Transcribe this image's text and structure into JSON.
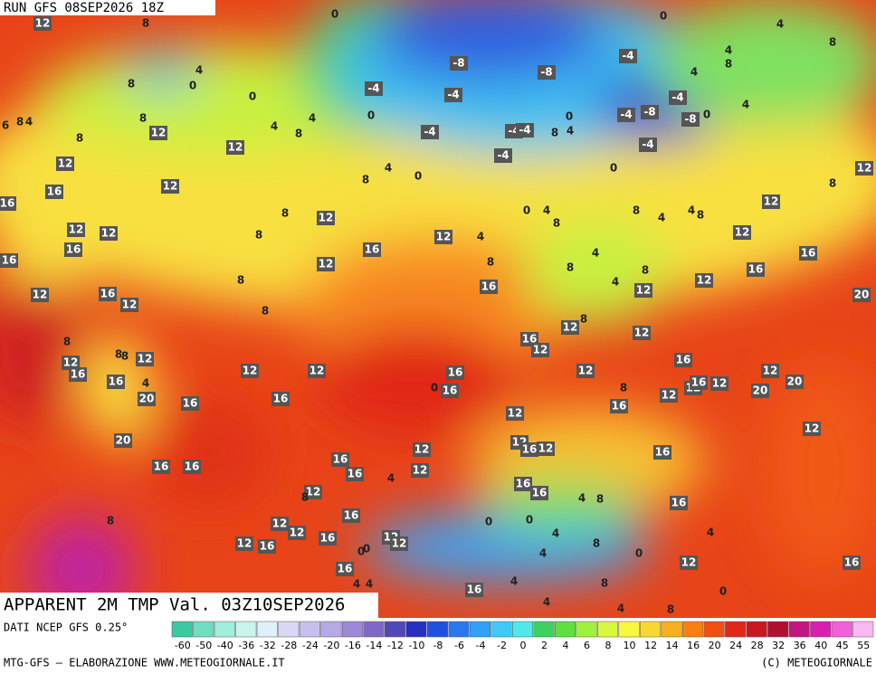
{
  "header": {
    "run": "RUN GFS 08SEP2026 18Z"
  },
  "title": "APPARENT 2M TMP Val. 03Z10SEP2026",
  "footer": {
    "source": "DATI NCEP GFS 0.25°",
    "credit": "MTG-GFS — ELABORAZIONE WWW.METEOGIORNALE.IT",
    "copyright": "(C) METEOGIORNALE"
  },
  "legend": {
    "ticks": [
      -60,
      -50,
      -40,
      -36,
      -32,
      -28,
      -24,
      -20,
      -16,
      -14,
      -12,
      -10,
      -8,
      -6,
      -4,
      -2,
      0,
      2,
      4,
      6,
      8,
      10,
      12,
      14,
      16,
      20,
      24,
      28,
      32,
      36,
      40,
      45,
      55
    ],
    "colors": [
      "#3cc8a0",
      "#70dcc0",
      "#a0eedc",
      "#c8f4ec",
      "#e0f0f8",
      "#d8d8f4",
      "#c8c0ec",
      "#b8a8e4",
      "#a088d8",
      "#8068c8",
      "#5048b8",
      "#2830c0",
      "#2050e0",
      "#2878f0",
      "#30a0f8",
      "#40c8f8",
      "#50e8e8",
      "#40d060",
      "#60e040",
      "#a0f040",
      "#d8f840",
      "#f8f840",
      "#f8d830",
      "#f8b020",
      "#f88010",
      "#f05010",
      "#e02818",
      "#c81820",
      "#b01030",
      "#c01880",
      "#d820b0",
      "#f060d8",
      "#f8b8f0"
    ]
  },
  "map_labels": [
    0,
    0,
    4,
    12,
    8,
    8,
    4,
    -8,
    -4,
    -8,
    8,
    4,
    4,
    8,
    0,
    -4,
    -4,
    -4,
    0,
    4,
    8,
    0,
    4,
    -4,
    -8,
    -8,
    0,
    0,
    6,
    8,
    4,
    12,
    4,
    8,
    -4,
    -4,
    -4,
    8,
    4,
    8,
    12,
    -4,
    -4,
    12,
    4,
    0,
    8,
    0,
    12,
    12,
    16,
    8,
    16,
    12,
    0,
    4,
    8,
    8,
    4,
    4,
    8,
    8,
    12,
    12,
    12,
    8,
    12,
    4,
    12,
    16,
    16,
    4,
    16,
    16,
    12,
    8,
    8,
    8,
    16,
    8,
    16,
    4,
    12,
    12,
    12,
    16,
    12,
    20,
    8,
    8,
    12,
    12,
    8,
    16,
    12,
    8,
    8,
    12,
    12,
    16,
    12,
    12,
    16,
    12,
    16,
    12,
    16,
    4,
    0,
    16,
    8,
    12,
    12,
    16,
    12,
    20,
    20,
    20,
    16,
    16,
    16,
    12,
    12,
    20,
    12,
    12,
    16,
    12,
    16,
    16,
    16,
    16,
    16,
    12,
    4,
    16,
    16,
    4,
    8,
    12,
    8,
    16,
    16,
    0,
    0,
    8,
    12,
    12,
    4,
    4,
    16,
    12,
    12,
    12,
    16,
    8,
    0,
    0,
    4,
    0,
    12,
    16,
    16,
    4,
    4,
    8,
    4,
    0,
    16,
    4,
    4,
    8,
    16
  ]
}
